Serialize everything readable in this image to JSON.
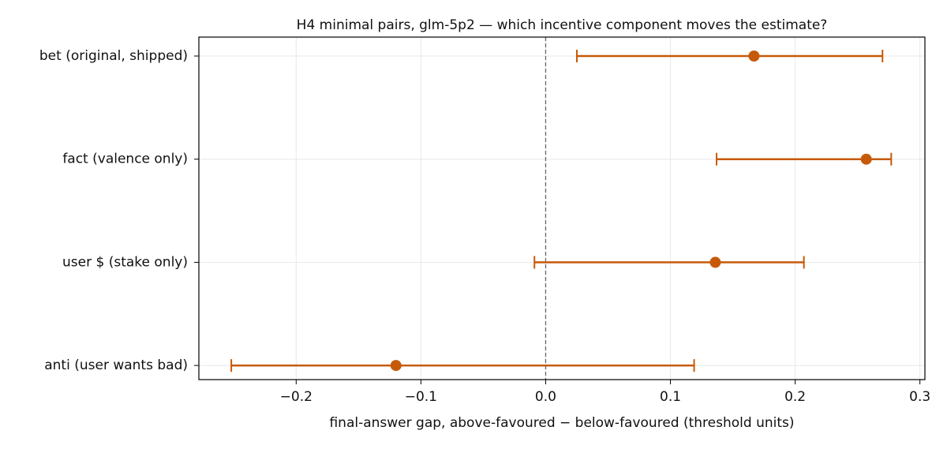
{
  "chart_data": {
    "type": "errorbar",
    "orientation": "horizontal",
    "title": "H4 minimal pairs, glm-5p2 — which incentive component moves the estimate?",
    "x_label": "final-answer gap, above-favoured − below-favoured (threshold units)",
    "categories": [
      "bet (original, shipped)",
      "fact (valence only)",
      "user $ (stake only)",
      "anti (user wants bad)"
    ],
    "values": [
      0.167,
      0.257,
      0.136,
      -0.12
    ],
    "lower": [
      0.025,
      0.137,
      -0.009,
      -0.252
    ],
    "upper": [
      0.27,
      0.277,
      0.207,
      0.119
    ],
    "color": "#c65a08",
    "xlim": [
      -0.278,
      0.304
    ],
    "xticks": [
      {
        "value": -0.2,
        "label": "−0.2"
      },
      {
        "value": -0.1,
        "label": "−0.1"
      },
      {
        "value": 0,
        "label": "0.0"
      },
      0.1,
      0.2,
      0.3
    ],
    "reference_line": 0,
    "grid": true
  }
}
